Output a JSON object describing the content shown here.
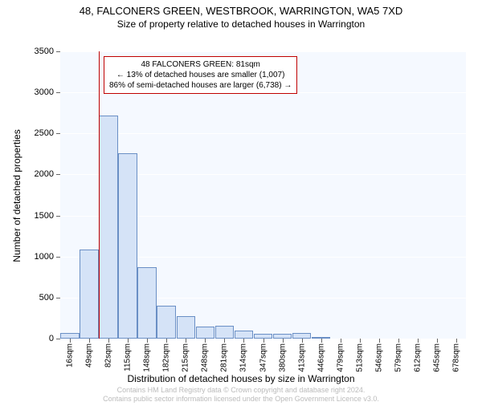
{
  "title": "48, FALCONERS GREEN, WESTBROOK, WARRINGTON, WA5 7XD",
  "subtitle": "Size of property relative to detached houses in Warrington",
  "y_axis_title": "Number of detached properties",
  "x_axis_title": "Distribution of detached houses by size in Warrington",
  "footer_line1": "Contains HM Land Registry data © Crown copyright and database right 2024.",
  "footer_line2": "Contains public sector information licensed under the Open Government Licence v3.0.",
  "chart": {
    "type": "bar",
    "background_color": "#f5f9ff",
    "grid_color": "#ffffff",
    "bar_fill": "#d5e3f7",
    "bar_border": "#6a8fc5",
    "ref_line_color": "#c00000",
    "ref_line_x_index": 2,
    "ylim": [
      0,
      3500
    ],
    "ytick_step": 500,
    "categories": [
      "16sqm",
      "49sqm",
      "82sqm",
      "115sqm",
      "148sqm",
      "182sqm",
      "215sqm",
      "248sqm",
      "281sqm",
      "314sqm",
      "347sqm",
      "380sqm",
      "413sqm",
      "446sqm",
      "479sqm",
      "513sqm",
      "546sqm",
      "579sqm",
      "612sqm",
      "645sqm",
      "678sqm"
    ],
    "values": [
      70,
      1090,
      2720,
      2260,
      870,
      400,
      270,
      150,
      160,
      100,
      60,
      60,
      70,
      10,
      0,
      0,
      0,
      0,
      0,
      0,
      0
    ],
    "annotation": {
      "line1": "48 FALCONERS GREEN: 81sqm",
      "line2": "← 13% of detached houses are smaller (1,007)",
      "line3": "86% of semi-detached houses are larger (6,738) →"
    }
  }
}
